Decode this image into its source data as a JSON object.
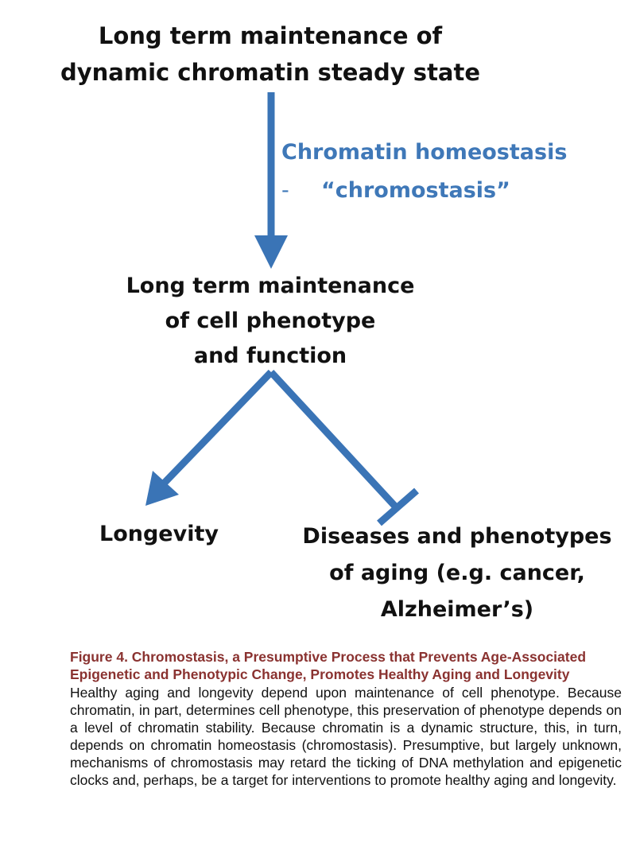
{
  "diagram": {
    "top_node": {
      "lines": [
        "Long term maintenance of",
        "dynamic chromatin steady state"
      ]
    },
    "edge_label": {
      "line1": "Chromatin homeostasis",
      "dash": "-",
      "line2": "“chromostasis”"
    },
    "middle_node": {
      "lines": [
        "Long term maintenance",
        "of cell phenotype",
        "and function"
      ]
    },
    "left_node": {
      "lines": [
        "Longevity"
      ]
    },
    "right_node": {
      "lines": [
        "Diseases and phenotypes",
        "of aging (e.g. cancer,",
        "Alzheimer’s)"
      ]
    },
    "colors": {
      "arrow": "#3a74b6",
      "edge_label": "#3f78b8",
      "node_text": "#111111"
    }
  },
  "caption": {
    "title": "Figure 4.  Chromostasis, a Presumptive Process that Prevents Age-Associated Epigenetic and Phenotypic Change, Promotes Healthy Aging and Longevity",
    "body": "Healthy aging and longevity depend upon maintenance of cell phenotype. Because chromatin, in part, determines cell phenotype, this preservation of phenotype depends on a level of chromatin stability. Because chromatin is a dynamic structure, this, in turn, depends on chromatin homeostasis (chromostasis). Presumptive, but largely unknown, mechanisms of chromostasis may retard the ticking of DNA methylation and epigenetic clocks and, perhaps, be a target for interventions to promote healthy aging and longevity.",
    "title_color": "#8a3230"
  }
}
